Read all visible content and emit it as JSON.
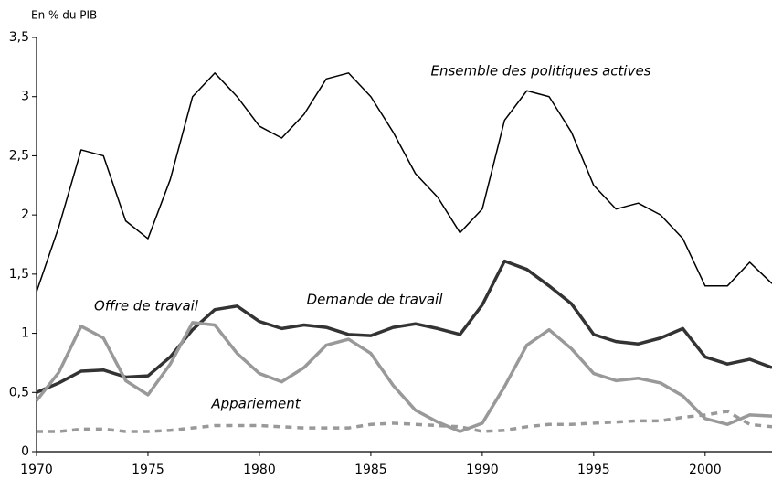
{
  "chart_data": {
    "type": "line",
    "y_axis_label": "En % du PIB",
    "x": [
      1970,
      1971,
      1972,
      1973,
      1974,
      1975,
      1976,
      1977,
      1978,
      1979,
      1980,
      1981,
      1982,
      1983,
      1984,
      1985,
      1986,
      1987,
      1988,
      1989,
      1990,
      1991,
      1992,
      1993,
      1994,
      1995,
      1996,
      1997,
      1998,
      1999,
      2000,
      2001,
      2002,
      2003
    ],
    "xlim": [
      1970,
      2003
    ],
    "xticks": [
      1970,
      1975,
      1980,
      1985,
      1990,
      1995,
      2000
    ],
    "ylim": [
      0,
      3.5
    ],
    "yticks": [
      0,
      {
        "value": 0.5,
        "label": "0,5"
      },
      1,
      {
        "value": 1.5,
        "label": "1,5"
      },
      2,
      {
        "value": 2.5,
        "label": "2,5"
      },
      3,
      {
        "value": 3.5,
        "label": "3,5"
      }
    ],
    "series": [
      {
        "name": "Ensemble des politiques actives",
        "color": "#000000",
        "style": "solid",
        "width": 1.5,
        "values": [
          1.35,
          1.9,
          2.55,
          2.5,
          1.95,
          1.8,
          2.3,
          3.0,
          3.2,
          3.0,
          2.75,
          2.65,
          2.85,
          3.15,
          3.2,
          3.0,
          2.7,
          2.35,
          2.15,
          1.85,
          2.05,
          2.8,
          3.05,
          3.0,
          2.7,
          2.25,
          2.05,
          2.1,
          2.0,
          1.8,
          1.4,
          1.4,
          1.6,
          1.42
        ]
      },
      {
        "name": "Demande de travail",
        "color": "#333333",
        "style": "solid",
        "width": 3.5,
        "values": [
          0.5,
          0.58,
          0.68,
          0.69,
          0.63,
          0.64,
          0.8,
          1.03,
          1.2,
          1.23,
          1.1,
          1.04,
          1.07,
          1.05,
          0.99,
          0.98,
          1.05,
          1.08,
          1.04,
          0.99,
          1.24,
          1.61,
          1.54,
          1.4,
          1.25,
          0.99,
          0.93,
          0.91,
          0.96,
          1.04,
          0.8,
          0.74,
          0.78,
          0.71
        ]
      },
      {
        "name": "Offre de travail",
        "color": "#999999",
        "style": "solid",
        "width": 3.5,
        "values": [
          0.43,
          0.67,
          1.06,
          0.96,
          0.6,
          0.48,
          0.74,
          1.09,
          1.07,
          0.83,
          0.66,
          0.59,
          0.71,
          0.9,
          0.95,
          0.83,
          0.56,
          0.35,
          0.25,
          0.17,
          0.24,
          0.55,
          0.9,
          1.03,
          0.87,
          0.66,
          0.6,
          0.62,
          0.58,
          0.47,
          0.28,
          0.23,
          0.31,
          0.3
        ]
      },
      {
        "name": "Appariement",
        "color": "#999999",
        "style": "dashed",
        "width": 3.5,
        "values": [
          0.17,
          0.17,
          0.19,
          0.19,
          0.17,
          0.17,
          0.18,
          0.2,
          0.22,
          0.22,
          0.22,
          0.21,
          0.2,
          0.2,
          0.2,
          0.23,
          0.24,
          0.23,
          0.22,
          0.21,
          0.17,
          0.18,
          0.21,
          0.23,
          0.23,
          0.24,
          0.25,
          0.26,
          0.26,
          0.29,
          0.31,
          0.34,
          0.23,
          0.21
        ]
      }
    ]
  }
}
